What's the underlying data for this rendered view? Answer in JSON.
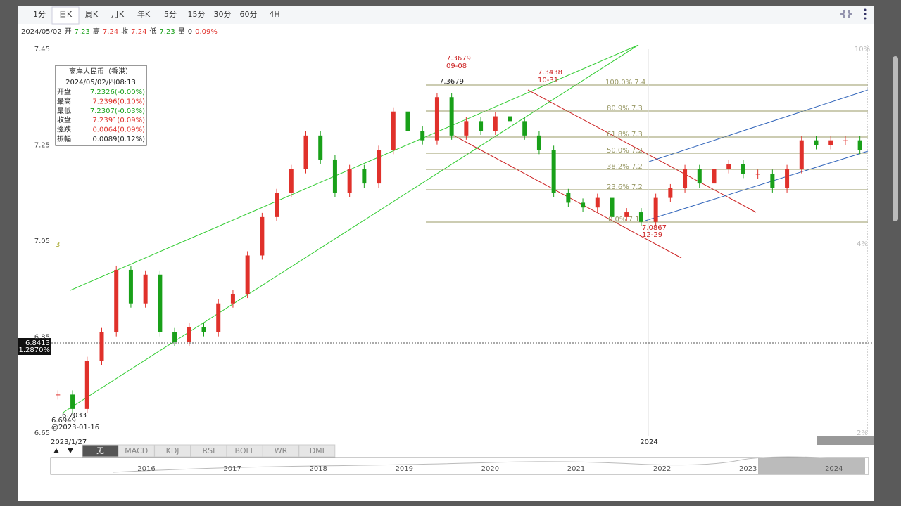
{
  "toolbar": {
    "tabs": [
      "1分",
      "日K",
      "周K",
      "月K",
      "年K",
      "5分",
      "15分",
      "30分",
      "60分",
      "4H"
    ],
    "active": 1
  },
  "info": {
    "date": "2024/05/02",
    "open_label": "开",
    "open": "7.23",
    "high_label": "高",
    "high": "7.24",
    "close_label": "收",
    "close": "7.24",
    "low_label": "低",
    "low": "7.23",
    "vol_label": "量",
    "vol": "0",
    "change": "0.09%"
  },
  "tooltip": {
    "title": "离岸人民币（香港）",
    "time": "2024/05/02/四08:13",
    "rows": [
      [
        "开盘",
        "7.2326(-0.00%)"
      ],
      [
        "最高",
        "7.2396(0.10%)"
      ],
      [
        "最低",
        "7.2307(-0.03%)"
      ],
      [
        "收盘",
        "7.2391(0.09%)"
      ],
      [
        "涨跌",
        "0.0064(0.09%)"
      ],
      [
        "振幅",
        "0.0089(0.12%)"
      ]
    ]
  },
  "chart_data": {
    "type": "candlestick",
    "ylim": [
      6.65,
      7.45
    ],
    "yticks": [
      7.45,
      7.25,
      7.05,
      6.85,
      6.65
    ],
    "up_color": "#e0312b",
    "down_color": "#19a019",
    "values": [
      6.73,
      6.7,
      6.8,
      6.86,
      6.99,
      6.92,
      6.98,
      6.86,
      6.84,
      6.87,
      6.86,
      6.92,
      6.94,
      7.02,
      7.1,
      7.15,
      7.2,
      7.27,
      7.22,
      7.15,
      7.2,
      7.17,
      7.24,
      7.32,
      7.28,
      7.26,
      7.35,
      7.27,
      7.3,
      7.28,
      7.31,
      7.3,
      7.27,
      7.24,
      7.15,
      7.13,
      7.12,
      7.14,
      7.1,
      7.11,
      7.09,
      7.14,
      7.16,
      7.2,
      7.17,
      7.2,
      7.21,
      7.19,
      7.19,
      7.16,
      7.2,
      7.26,
      7.25,
      7.26,
      7.26,
      7.24
    ],
    "start_label": "2023/1/27",
    "year_label": "2024",
    "marker": "3",
    "right_labels": [
      "10%",
      "4%",
      "2%"
    ],
    "annotations": [
      "7.3679",
      "09-08",
      "7.3438",
      "10-31",
      "7.3679",
      "6.7033",
      "6.6949",
      "@2023-01-16",
      "7.0867",
      "12-29"
    ],
    "fib_labels": [
      "100.0% 7.4",
      "80.9% 7.3",
      "61.8% 7.3",
      "50.0% 7.2",
      "38.2% 7.2",
      "23.6% 7.2",
      "0.0% 7.1"
    ],
    "crosshair": {
      "price": "6.8413",
      "pct": "1.2870%"
    }
  },
  "indicators": [
    "无",
    "MACD",
    "KDJ",
    "RSI",
    "BOLL",
    "WR",
    "DMI"
  ],
  "navigator": {
    "years": [
      "2016",
      "2017",
      "2018",
      "2019",
      "2020",
      "2021",
      "2022",
      "2023",
      "2024"
    ]
  }
}
